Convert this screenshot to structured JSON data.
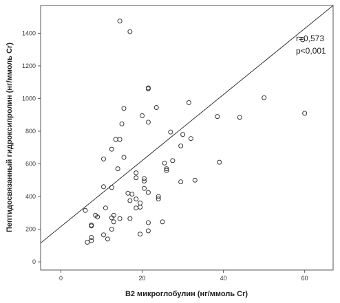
{
  "chart_data": {
    "type": "scatter",
    "xlabel": "B2 микроглобулин (нг/ммоль Cr)",
    "ylabel": "Пептидосвязанный гидроксипролин (нг/ммоль Cr)",
    "xlim": [
      -5,
      67
    ],
    "ylim": [
      -50,
      1570
    ],
    "x_ticks": [
      "0",
      "20",
      "40",
      "60"
    ],
    "y_ticks": [
      "0",
      "200",
      "400",
      "600",
      "800",
      "1000",
      "1200",
      "1400"
    ],
    "grid": false,
    "legend": "none",
    "annotations": [
      "r=0,573",
      "p<0,001"
    ],
    "fit_line": {
      "x": [
        -5,
        67
      ],
      "y": [
        115,
        1570
      ]
    },
    "marker_color": "#333333",
    "line_color": "#333333",
    "points": [
      {
        "x": 14.5,
        "y": 1475
      },
      {
        "x": 17,
        "y": 1410
      },
      {
        "x": 59.5,
        "y": 1360
      },
      {
        "x": 21.5,
        "y": 1065
      },
      {
        "x": 21.5,
        "y": 1060
      },
      {
        "x": 50,
        "y": 1005
      },
      {
        "x": 31.5,
        "y": 975
      },
      {
        "x": 23.5,
        "y": 945
      },
      {
        "x": 15.5,
        "y": 940
      },
      {
        "x": 60,
        "y": 910
      },
      {
        "x": 20,
        "y": 895
      },
      {
        "x": 38.5,
        "y": 890
      },
      {
        "x": 44,
        "y": 885
      },
      {
        "x": 21.5,
        "y": 855
      },
      {
        "x": 15,
        "y": 845
      },
      {
        "x": 27,
        "y": 795
      },
      {
        "x": 30,
        "y": 780
      },
      {
        "x": 32,
        "y": 755
      },
      {
        "x": 13.5,
        "y": 750
      },
      {
        "x": 14.5,
        "y": 750
      },
      {
        "x": 29.5,
        "y": 710
      },
      {
        "x": 12.5,
        "y": 690
      },
      {
        "x": 15.5,
        "y": 640
      },
      {
        "x": 10.5,
        "y": 630
      },
      {
        "x": 27.5,
        "y": 620
      },
      {
        "x": 39,
        "y": 610
      },
      {
        "x": 25.5,
        "y": 605
      },
      {
        "x": 26,
        "y": 570
      },
      {
        "x": 26,
        "y": 560
      },
      {
        "x": 14,
        "y": 570
      },
      {
        "x": 18.5,
        "y": 545
      },
      {
        "x": 18.5,
        "y": 515
      },
      {
        "x": 20.5,
        "y": 510
      },
      {
        "x": 20.5,
        "y": 495
      },
      {
        "x": 33,
        "y": 500
      },
      {
        "x": 29.5,
        "y": 490
      },
      {
        "x": 10.5,
        "y": 460
      },
      {
        "x": 12.5,
        "y": 455
      },
      {
        "x": 20.5,
        "y": 450
      },
      {
        "x": 16.5,
        "y": 420
      },
      {
        "x": 17.5,
        "y": 415
      },
      {
        "x": 21.5,
        "y": 425
      },
      {
        "x": 24,
        "y": 400
      },
      {
        "x": 24,
        "y": 385
      },
      {
        "x": 17,
        "y": 375
      },
      {
        "x": 18.5,
        "y": 385
      },
      {
        "x": 19.5,
        "y": 360
      },
      {
        "x": 18.5,
        "y": 330
      },
      {
        "x": 19.5,
        "y": 335
      },
      {
        "x": 11,
        "y": 330
      },
      {
        "x": 6,
        "y": 315
      },
      {
        "x": 8.5,
        "y": 285
      },
      {
        "x": 9,
        "y": 275
      },
      {
        "x": 13,
        "y": 285
      },
      {
        "x": 12.5,
        "y": 270
      },
      {
        "x": 14.5,
        "y": 265
      },
      {
        "x": 17,
        "y": 265
      },
      {
        "x": 13,
        "y": 245
      },
      {
        "x": 21.5,
        "y": 240
      },
      {
        "x": 25,
        "y": 245
      },
      {
        "x": 7.5,
        "y": 220
      },
      {
        "x": 7.5,
        "y": 225
      },
      {
        "x": 12.5,
        "y": 200
      },
      {
        "x": 21.5,
        "y": 190
      },
      {
        "x": 19.5,
        "y": 170
      },
      {
        "x": 10.5,
        "y": 165
      },
      {
        "x": 7.5,
        "y": 150
      },
      {
        "x": 11.5,
        "y": 140
      },
      {
        "x": 7.5,
        "y": 130
      },
      {
        "x": 6.5,
        "y": 120
      }
    ]
  }
}
